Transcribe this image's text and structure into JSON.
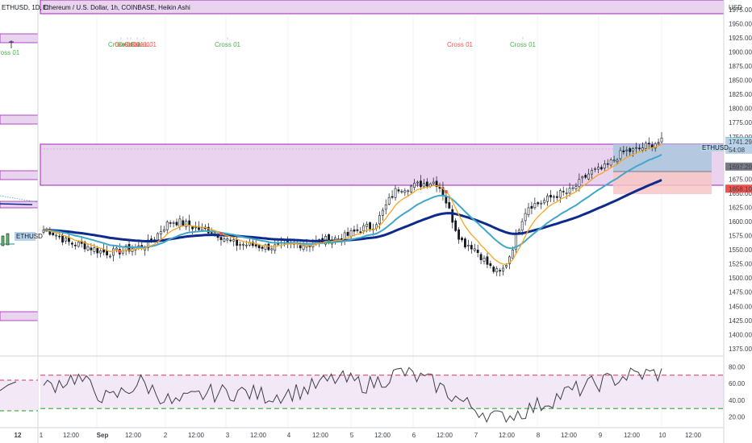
{
  "header": {
    "left_symbol": "ETHUSD, 1D, C",
    "title": "Ethereum / U.S. Dollar, 1h, COINBASE, Heikin Ashi",
    "currency": "USD",
    "left_tag": "ETHUSD",
    "right_tag": "ETHUSD"
  },
  "cross_labels": [
    {
      "text": "Cross 01",
      "color": "#4caf50"
    },
    {
      "text": "Cross 01",
      "color": "#ef5350"
    },
    {
      "text": "Cross 01",
      "color": "#4caf50"
    },
    {
      "text": "Cross 01",
      "color": "#ef5350"
    },
    {
      "text": "Cross 01",
      "color": "#ef5350"
    },
    {
      "text": "Cross 01",
      "color": "#4caf50"
    },
    {
      "text": "Cross 01",
      "color": "#ef5350"
    },
    {
      "text": "Cross 01",
      "color": "#4caf50"
    }
  ],
  "price_axis": {
    "ticks": [
      "1975.00",
      "1950.00",
      "1925.00",
      "1900.00",
      "1875.00",
      "1850.00",
      "1825.00",
      "1800.00",
      "1775.00",
      "1750.00",
      "1725.00",
      "1700.00",
      "1675.00",
      "1650.00",
      "1625.00",
      "1600.00",
      "1575.00",
      "1550.00",
      "1525.00",
      "1500.00",
      "1475.00",
      "1450.00",
      "1425.00",
      "1400.00",
      "1375.00"
    ],
    "labels": [
      {
        "text": "1742.00",
        "color": "#26a69a"
      },
      {
        "text": "1741.29",
        "color": "#b7d2e8"
      },
      {
        "text": "54:08",
        "color": "#b7d2e8"
      },
      {
        "text": "1697.20",
        "color": "#787b86"
      },
      {
        "text": "1658.10",
        "color": "#ef5350"
      }
    ]
  },
  "rsi_axis": {
    "ticks": [
      "80.00",
      "60.00",
      "40.00",
      "20.00"
    ]
  },
  "time_axis": {
    "labels": [
      "12",
      "1",
      "12:00",
      "Sep",
      "12:00",
      "2",
      "12:00",
      "3",
      "12:00",
      "4",
      "12:00",
      "5",
      "12:00",
      "6",
      "12:00",
      "7",
      "12:00",
      "8",
      "12:00",
      "9",
      "12:00",
      "10",
      "12:00"
    ]
  },
  "colors": {
    "zone_fill": "#e9d3ef",
    "zone_border": "#9c27b0",
    "candle": "#131722",
    "ema_fast": "#f5a623",
    "ema_mid": "#3fa7c9",
    "ema_slow": "#0d2a8c",
    "tp_box": "#aac7dd",
    "sl_box": "#f7c6c6",
    "rsi_line": "#3c3f47",
    "rsi_upper": "#e57391",
    "rsi_lower": "#66bb6a"
  },
  "chart_data": {
    "type": "candlestick",
    "title": "Ethereum / U.S. Dollar, 1h, COINBASE, Heikin Ashi",
    "xlabel": "",
    "ylabel": "USD",
    "ylim": [
      1362,
      1992
    ],
    "x": [
      "Aug 31 12:00",
      "Sep 1",
      "Sep 1 12:00",
      "Sep 2",
      "Sep 2 12:00",
      "Sep 3",
      "Sep 3 12:00",
      "Sep 4",
      "Sep 4 12:00",
      "Sep 5",
      "Sep 5 12:00",
      "Sep 6",
      "Sep 6 12:00",
      "Sep 7",
      "Sep 7 12:00",
      "Sep 8",
      "Sep 8 12:00",
      "Sep 9",
      "Sep 9 12:00",
      "Sep 10"
    ],
    "series": [
      {
        "name": "",
        "values": [
          1585,
          1560,
          1545,
          1555,
          1600,
          1585,
          1560,
          1555,
          1560,
          1570,
          1590,
          1660,
          1670,
          1560,
          1510,
          1630,
          1650,
          1690,
          1725,
          1741
        ]
      }
    ],
    "zones": [
      {
        "low": 1971,
        "high": 1990
      },
      {
        "low": 1675,
        "high": 1746
      }
    ],
    "current_price": 1741.29,
    "position": {
      "entry": 1697.2,
      "target": 1742.0,
      "stop": 1658.1
    },
    "rsi": {
      "ylim": [
        10,
        90
      ],
      "upper": 70,
      "lower": 30,
      "values": [
        55,
        68,
        40,
        62,
        35,
        48,
        50,
        45,
        52,
        66,
        58,
        74,
        60,
        35,
        18,
        30,
        48,
        60,
        70,
        72
      ]
    }
  }
}
